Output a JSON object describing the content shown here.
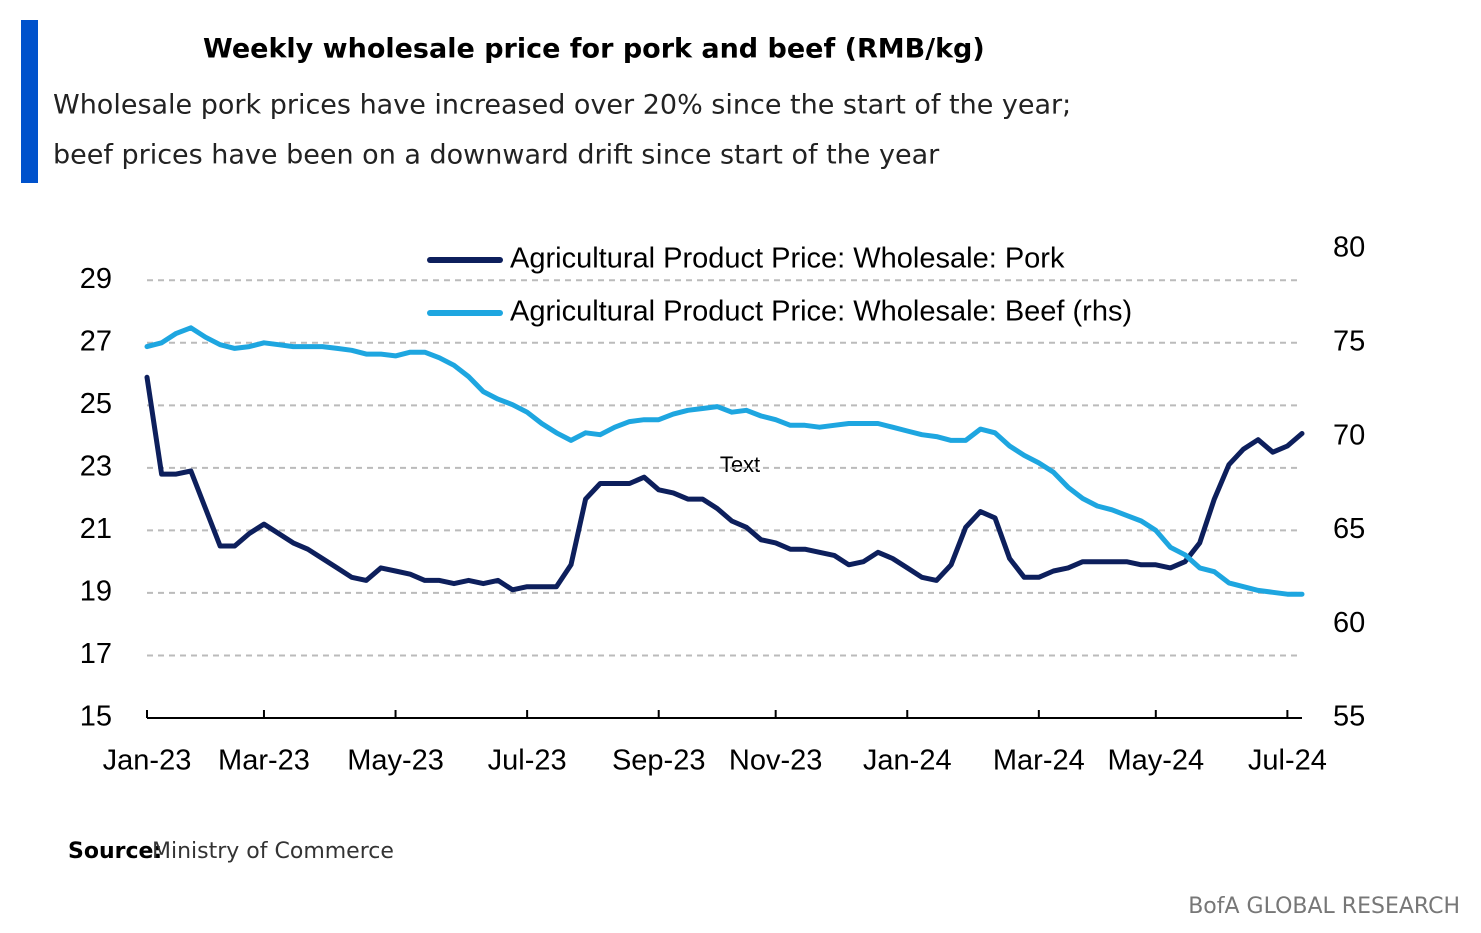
{
  "chart_data": {
    "type": "line",
    "title": "Weekly wholesale price for pork and beef (RMB/kg)",
    "subtitle": [
      "Wholesale pork prices have increased over 20% since the start of the year;",
      "beef prices have been on a downward drift since start of the year"
    ],
    "annotation": "Text",
    "categories": [
      "Jan-23",
      null,
      null,
      null,
      null,
      null,
      null,
      null,
      "Mar-23",
      null,
      null,
      null,
      null,
      null,
      null,
      null,
      null,
      "May-23",
      null,
      null,
      null,
      null,
      null,
      null,
      null,
      null,
      "Jul-23",
      null,
      null,
      null,
      null,
      null,
      null,
      null,
      null,
      "Sep-23",
      null,
      null,
      null,
      null,
      null,
      null,
      null,
      "Nov-23",
      null,
      null,
      null,
      null,
      null,
      null,
      null,
      null,
      "Jan-24",
      null,
      null,
      null,
      null,
      null,
      null,
      null,
      null,
      "Mar-24",
      null,
      null,
      null,
      null,
      null,
      null,
      null,
      "May-24",
      null,
      null,
      null,
      null,
      null,
      null,
      null,
      null,
      "Jul-24",
      null
    ],
    "series": [
      {
        "name": "Agricultural Product Price: Wholesale: Pork",
        "color": "#0d1f5c",
        "axis": "y",
        "values": [
          25.9,
          22.8,
          22.8,
          22.9,
          21.7,
          20.5,
          20.5,
          20.9,
          21.2,
          20.9,
          20.6,
          20.4,
          20.1,
          19.8,
          19.5,
          19.4,
          19.8,
          19.7,
          19.6,
          19.4,
          19.4,
          19.3,
          19.4,
          19.3,
          19.4,
          19.1,
          19.2,
          19.2,
          19.2,
          19.9,
          22.0,
          22.5,
          22.5,
          22.5,
          22.7,
          22.3,
          22.2,
          22.0,
          22.0,
          21.7,
          21.3,
          21.1,
          20.7,
          20.6,
          20.4,
          20.4,
          20.3,
          20.2,
          19.9,
          20.0,
          20.3,
          20.1,
          19.8,
          19.5,
          19.4,
          19.9,
          21.1,
          21.6,
          21.4,
          20.1,
          19.5,
          19.5,
          19.7,
          19.8,
          20.0,
          20.0,
          20.0,
          20.0,
          19.9,
          19.9,
          19.8,
          20.0,
          20.6,
          22.0,
          23.1,
          23.6,
          23.9,
          23.5,
          23.7,
          24.1
        ]
      },
      {
        "name": "Agricultural Product Price: Wholesale: Beef (rhs)",
        "color": "#1ea6e0",
        "axis": "y2",
        "values": [
          74.8,
          75.0,
          75.5,
          75.8,
          75.3,
          74.9,
          74.7,
          74.8,
          75.0,
          74.9,
          74.8,
          74.8,
          74.8,
          74.7,
          74.6,
          74.4,
          74.4,
          74.3,
          74.5,
          74.5,
          74.2,
          73.8,
          73.2,
          72.4,
          72.0,
          71.7,
          71.3,
          70.7,
          70.2,
          69.8,
          70.2,
          70.1,
          70.5,
          70.8,
          70.9,
          70.9,
          71.2,
          71.4,
          71.5,
          71.6,
          71.3,
          71.4,
          71.1,
          70.9,
          70.6,
          70.6,
          70.5,
          70.6,
          70.7,
          70.7,
          70.7,
          70.5,
          70.3,
          70.1,
          70.0,
          69.8,
          69.8,
          70.4,
          70.2,
          69.5,
          69.0,
          68.6,
          68.1,
          67.3,
          66.7,
          66.3,
          66.1,
          65.8,
          65.5,
          65.0,
          64.1,
          63.7,
          63.0,
          62.8,
          62.2,
          62.0,
          61.8,
          61.7,
          61.6,
          61.6
        ]
      }
    ],
    "ylim": [
      15,
      30
    ],
    "yticks": [
      15,
      17,
      19,
      21,
      23,
      25,
      27,
      29
    ],
    "y2lim": [
      55,
      80
    ],
    "y2ticks": [
      55,
      60,
      65,
      70,
      75,
      80
    ],
    "grid": true,
    "legend": "top"
  },
  "source_label": "Source:",
  "source": "Ministry of Commerce",
  "footer": "BofA GLOBAL RESEARCH"
}
